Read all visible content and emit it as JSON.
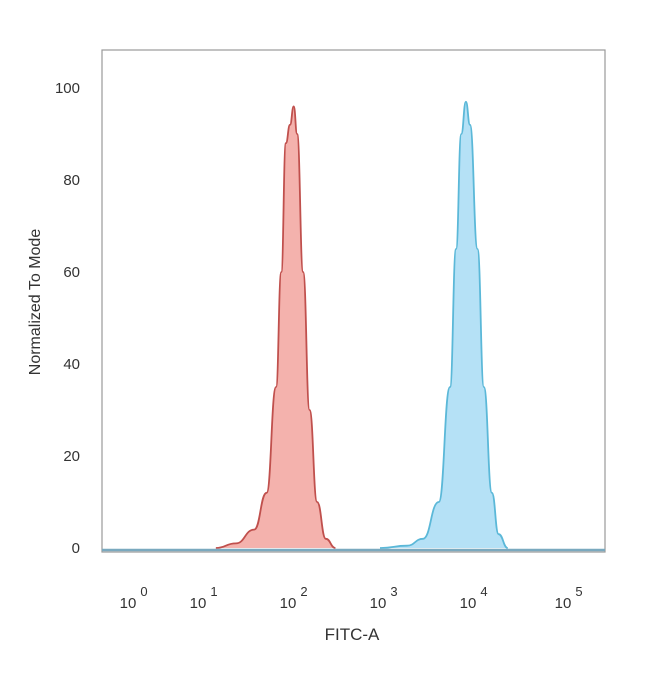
{
  "chart_data": {
    "type": "area",
    "title": "",
    "xlabel": "FITC-A",
    "ylabel": "Normalized To Mode",
    "xscale": "log",
    "xlim": [
      1,
      100000
    ],
    "ylim": [
      0,
      100
    ],
    "grid": false,
    "x_ticks": [
      {
        "base": "10",
        "exp": "0",
        "value": 1
      },
      {
        "base": "10",
        "exp": "1",
        "value": 10
      },
      {
        "base": "10",
        "exp": "2",
        "value": 100
      },
      {
        "base": "10",
        "exp": "3",
        "value": 1000
      },
      {
        "base": "10",
        "exp": "4",
        "value": 10000
      },
      {
        "base": "10",
        "exp": "5",
        "value": 100000
      }
    ],
    "y_ticks": [
      "0",
      "20",
      "40",
      "60",
      "80",
      "100"
    ],
    "series": [
      {
        "color_fill": "#f2a59f",
        "color_line": "#c0504d",
        "points": [
          [
            15,
            0
          ],
          [
            25,
            1
          ],
          [
            40,
            4
          ],
          [
            55,
            12
          ],
          [
            70,
            35
          ],
          [
            80,
            60
          ],
          [
            90,
            88
          ],
          [
            100,
            92
          ],
          [
            110,
            96
          ],
          [
            120,
            90
          ],
          [
            140,
            60
          ],
          [
            165,
            30
          ],
          [
            200,
            10
          ],
          [
            250,
            2
          ],
          [
            320,
            0
          ]
        ]
      },
      {
        "color_fill": "#a8dcf4",
        "color_line": "#5bb8d8",
        "points": [
          [
            1000,
            0
          ],
          [
            2000,
            0.5
          ],
          [
            3000,
            2
          ],
          [
            4500,
            10
          ],
          [
            6000,
            35
          ],
          [
            7000,
            65
          ],
          [
            8000,
            90
          ],
          [
            9000,
            97
          ],
          [
            10000,
            92
          ],
          [
            12000,
            65
          ],
          [
            14000,
            35
          ],
          [
            17000,
            12
          ],
          [
            20000,
            3
          ],
          [
            25000,
            0
          ]
        ]
      }
    ]
  }
}
